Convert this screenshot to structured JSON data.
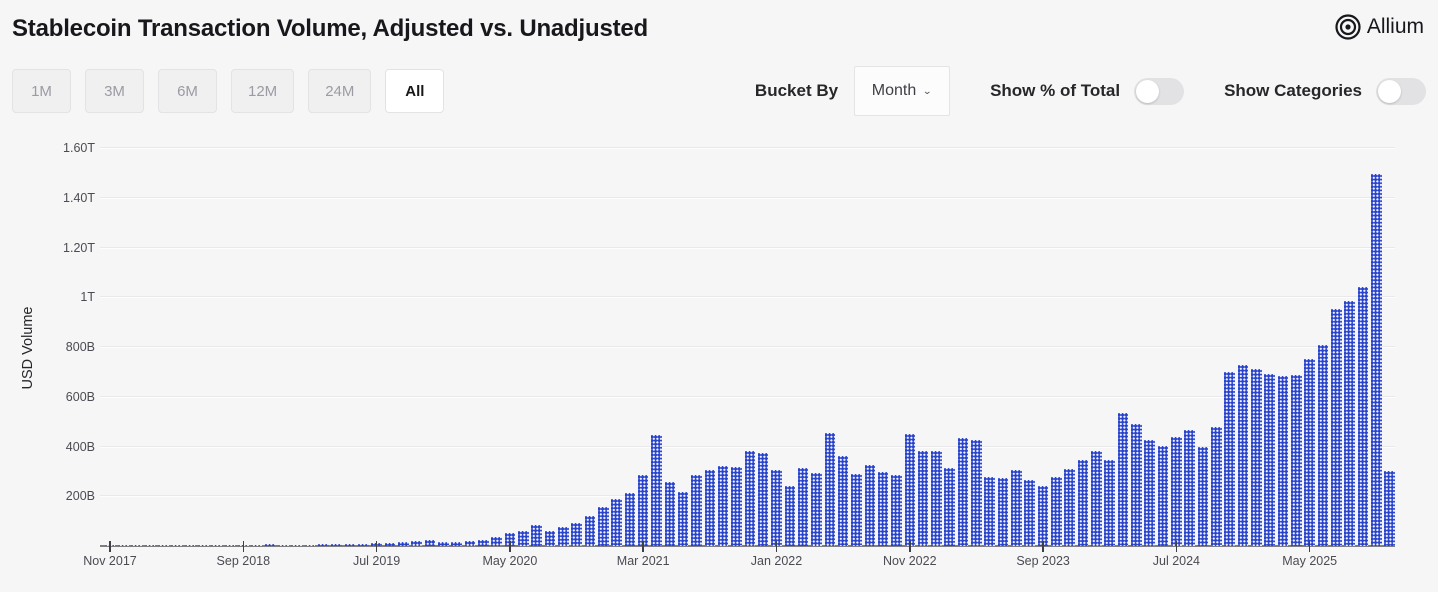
{
  "header": {
    "title": "Stablecoin Transaction Volume, Adjusted vs. Unadjusted",
    "brand": "Allium"
  },
  "controls": {
    "range_buttons": [
      "1M",
      "3M",
      "6M",
      "12M",
      "24M",
      "All"
    ],
    "active_range": "All",
    "bucket_by_label": "Bucket By",
    "bucket_by_value": "Month",
    "toggles": [
      {
        "label": "Show % of Total",
        "on": false
      },
      {
        "label": "Show Categories",
        "on": false
      }
    ]
  },
  "chart_data": {
    "type": "bar",
    "title": "Stablecoin Transaction Volume, Adjusted vs. Unadjusted",
    "ylabel": "USD Volume",
    "units": "billions USD",
    "bar_color": "#2742cb",
    "grid": true,
    "legend_position": "none",
    "ylim": [
      0,
      1630
    ],
    "y_ticks": [
      {
        "label": "1.60T",
        "value": 1600
      },
      {
        "label": "1.40T",
        "value": 1400
      },
      {
        "label": "1.20T",
        "value": 1200
      },
      {
        "label": "1T",
        "value": 1000
      },
      {
        "label": "800B",
        "value": 800
      },
      {
        "label": "600B",
        "value": 600
      },
      {
        "label": "400B",
        "value": 400
      },
      {
        "label": "200B",
        "value": 200
      }
    ],
    "x_tick_labels": [
      "Nov 2017",
      "Sep 2018",
      "Jul 2019",
      "May 2020",
      "Mar 2021",
      "Jan 2022",
      "Nov 2022",
      "Sep 2023",
      "Jul 2024",
      "May 2025"
    ],
    "x_tick_indices": [
      0,
      10,
      20,
      30,
      40,
      50,
      60,
      70,
      80,
      90
    ],
    "x": [
      "Nov 2017",
      "Dec 2017",
      "Jan 2018",
      "Feb 2018",
      "Mar 2018",
      "Apr 2018",
      "May 2018",
      "Jun 2018",
      "Jul 2018",
      "Aug 2018",
      "Sep 2018",
      "Oct 2018",
      "Nov 2018",
      "Dec 2018",
      "Jan 2019",
      "Feb 2019",
      "Mar 2019",
      "Apr 2019",
      "May 2019",
      "Jun 2019",
      "Jul 2019",
      "Aug 2019",
      "Sep 2019",
      "Oct 2019",
      "Nov 2019",
      "Dec 2019",
      "Jan 2020",
      "Feb 2020",
      "Mar 2020",
      "Apr 2020",
      "May 2020",
      "Jun 2020",
      "Jul 2020",
      "Aug 2020",
      "Sep 2020",
      "Oct 2020",
      "Nov 2020",
      "Dec 2020",
      "Jan 2021",
      "Feb 2021",
      "Mar 2021",
      "Apr 2021",
      "May 2021",
      "Jun 2021",
      "Jul 2021",
      "Aug 2021",
      "Sep 2021",
      "Oct 2021",
      "Nov 2021",
      "Dec 2021",
      "Jan 2022",
      "Feb 2022",
      "Mar 2022",
      "Apr 2022",
      "May 2022",
      "Jun 2022",
      "Jul 2022",
      "Aug 2022",
      "Sep 2022",
      "Oct 2022",
      "Nov 2022",
      "Dec 2022",
      "Jan 2023",
      "Feb 2023",
      "Mar 2023",
      "Apr 2023",
      "May 2023",
      "Jun 2023",
      "Jul 2023",
      "Aug 2023",
      "Sep 2023",
      "Oct 2023",
      "Nov 2023",
      "Dec 2023",
      "Jan 2024",
      "Feb 2024",
      "Mar 2024",
      "Apr 2024",
      "May 2024",
      "Jun 2024",
      "Jul 2024",
      "Aug 2024",
      "Sep 2024",
      "Oct 2024",
      "Nov 2024",
      "Dec 2024",
      "Jan 2025",
      "Feb 2025",
      "Mar 2025",
      "Apr 2025",
      "May 2025",
      "Jun 2025",
      "Jul 2025",
      "Aug 2025",
      "Sep 2025",
      "Oct 2025",
      "Nov 2025"
    ],
    "values": [
      2,
      3,
      4,
      3,
      3,
      3,
      3,
      4,
      4,
      5,
      5,
      6,
      7,
      6,
      5,
      6,
      7,
      8,
      10,
      8,
      14,
      11,
      17,
      21,
      24,
      17,
      17,
      21,
      24,
      35,
      52,
      60,
      85,
      62,
      78,
      93,
      120,
      155,
      190,
      212,
      287,
      445,
      257,
      217,
      285,
      307,
      320,
      317,
      384,
      375,
      305,
      240,
      313,
      293,
      455,
      361,
      291,
      327,
      297,
      284,
      452,
      381,
      384,
      313,
      433,
      427,
      277,
      275,
      304,
      267,
      240,
      277,
      310,
      347,
      381,
      347,
      533,
      491,
      427,
      404,
      440,
      467,
      397,
      477,
      700,
      727,
      710,
      690,
      685,
      688,
      750,
      808,
      952,
      985,
      1040,
      1495,
      302
    ]
  }
}
